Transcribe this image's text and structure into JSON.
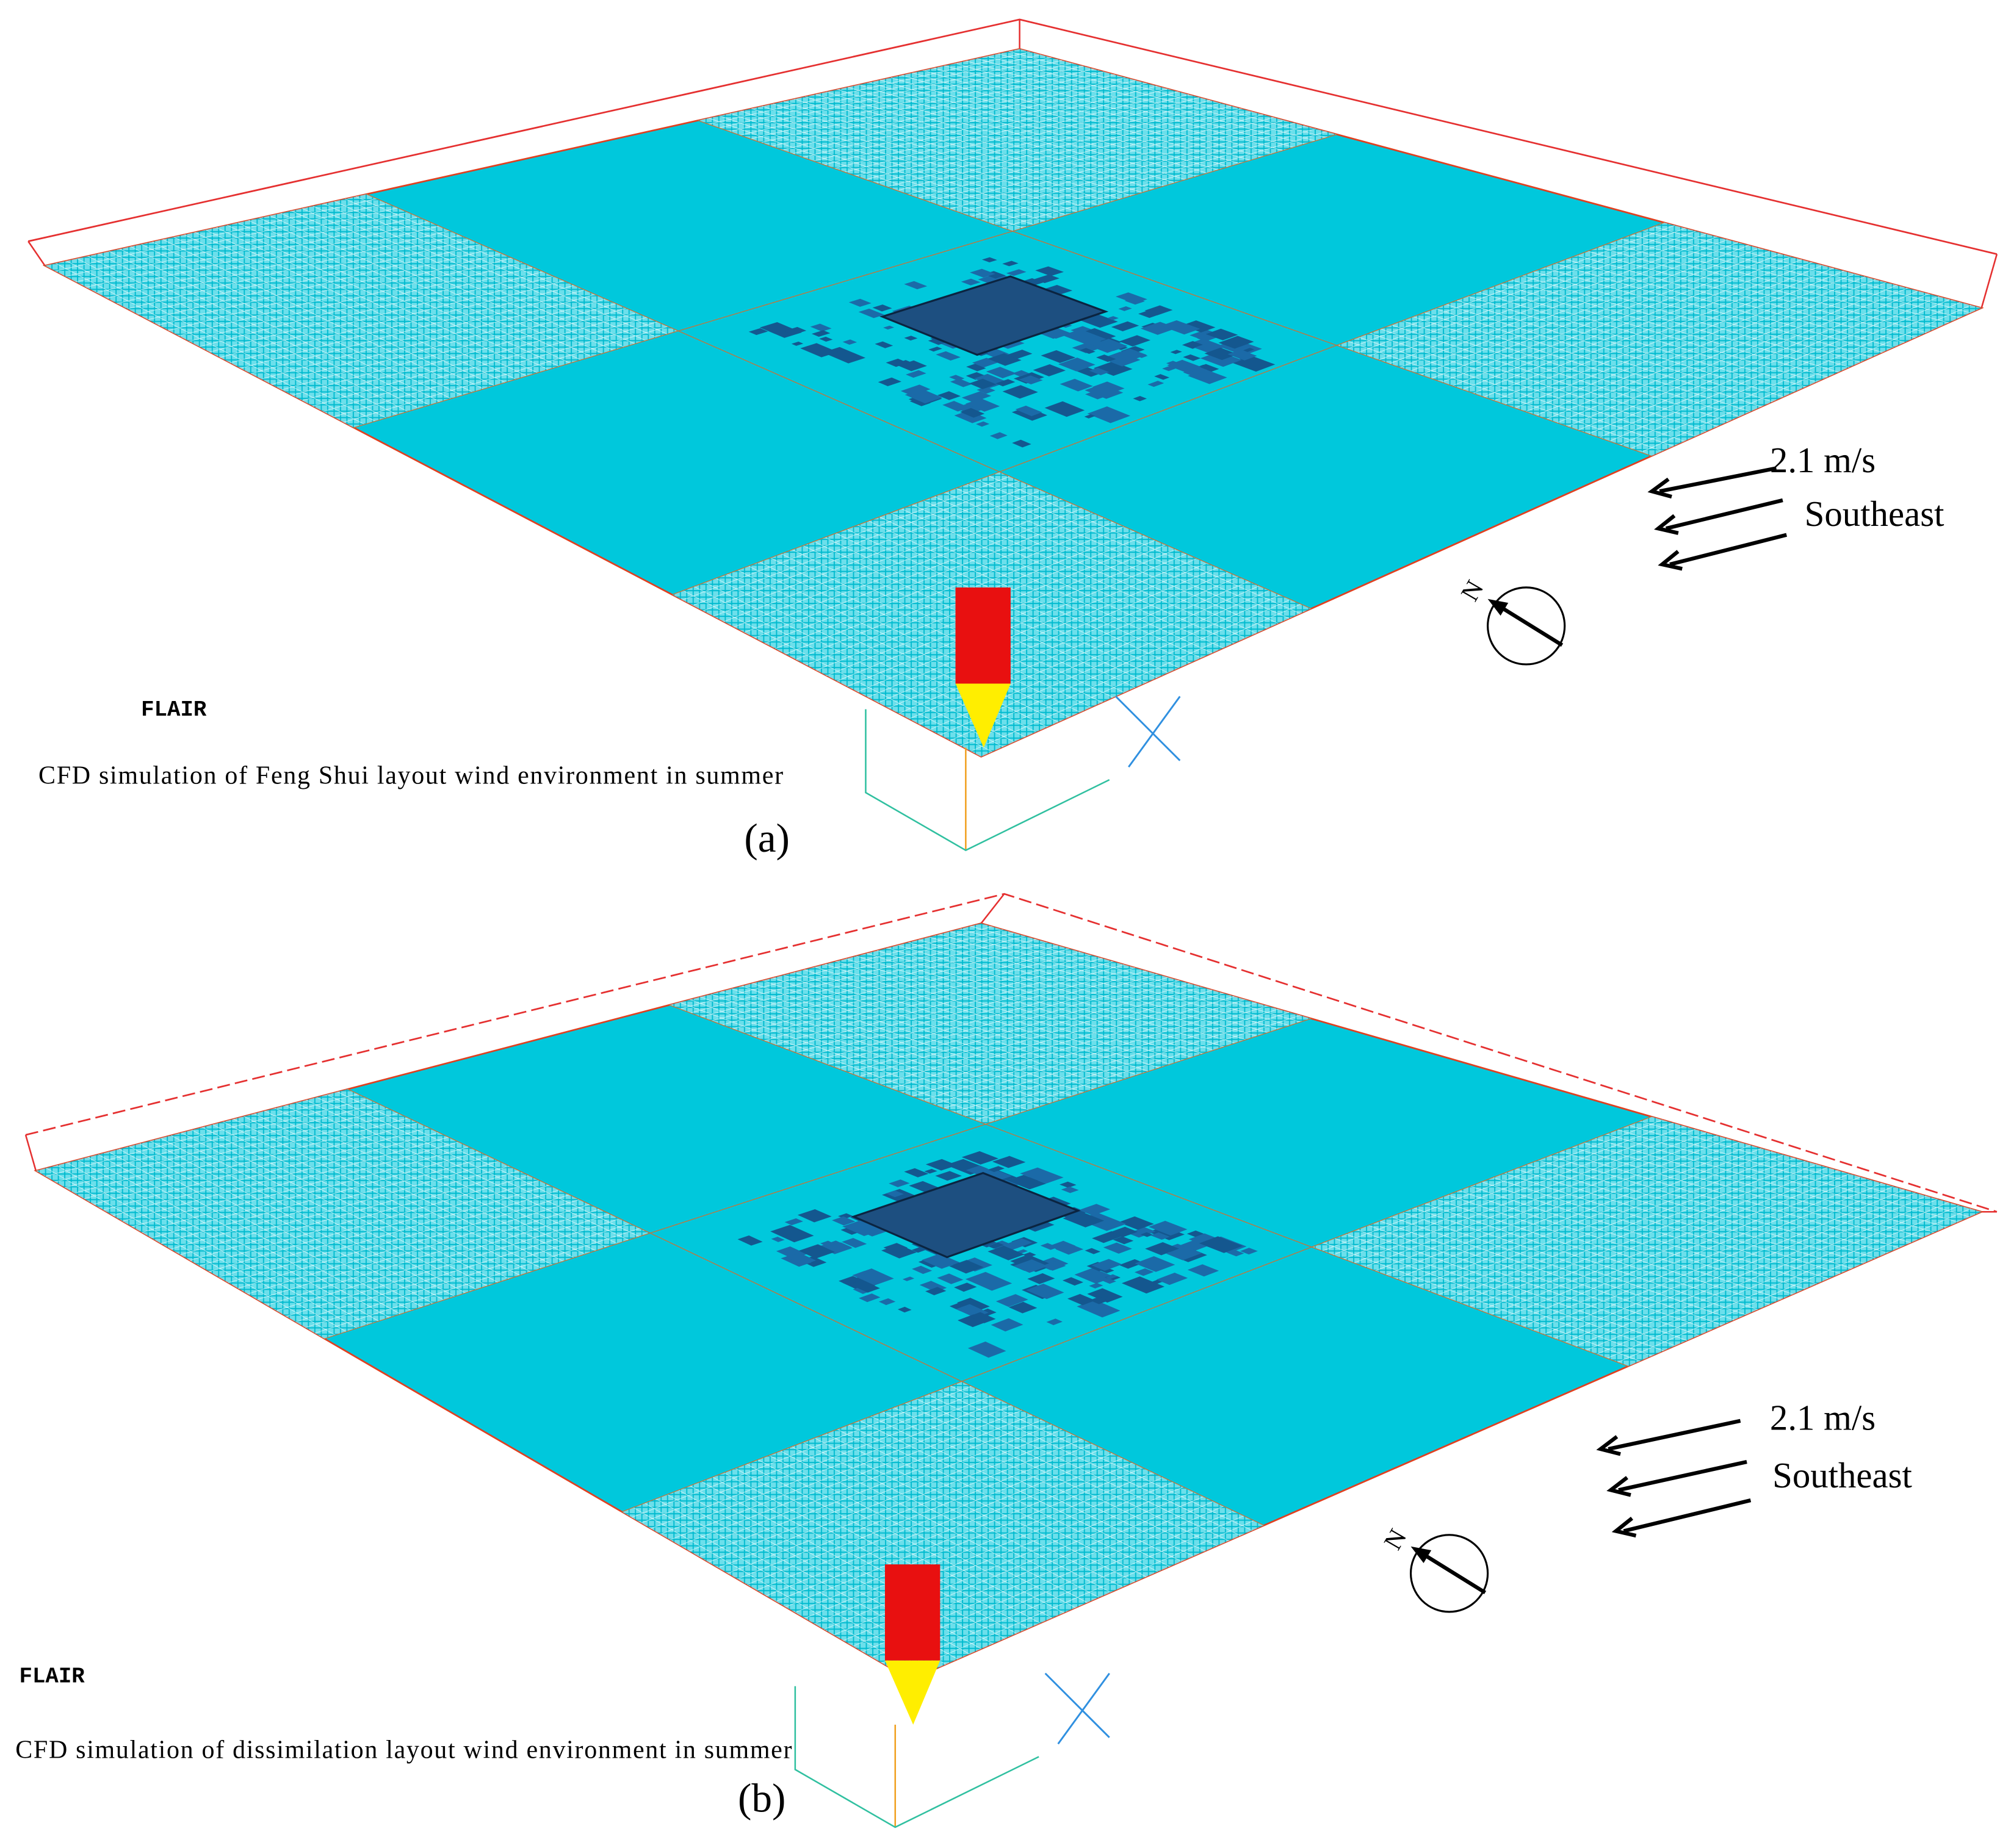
{
  "panels": [
    {
      "software": "FLAIR",
      "caption": "CFD simulation of Feng Shui layout wind environment in summer",
      "label": "(a)",
      "wind_speed": "2.1 m/s",
      "wind_direction": "Southeast",
      "compass": "N"
    },
    {
      "software": "FLAIR",
      "caption": "CFD simulation of  dissimilation layout wind environment in summer",
      "label": "(b)",
      "wind_speed": "2.1 m/s",
      "wind_direction": "Southeast",
      "compass": "N"
    }
  ]
}
